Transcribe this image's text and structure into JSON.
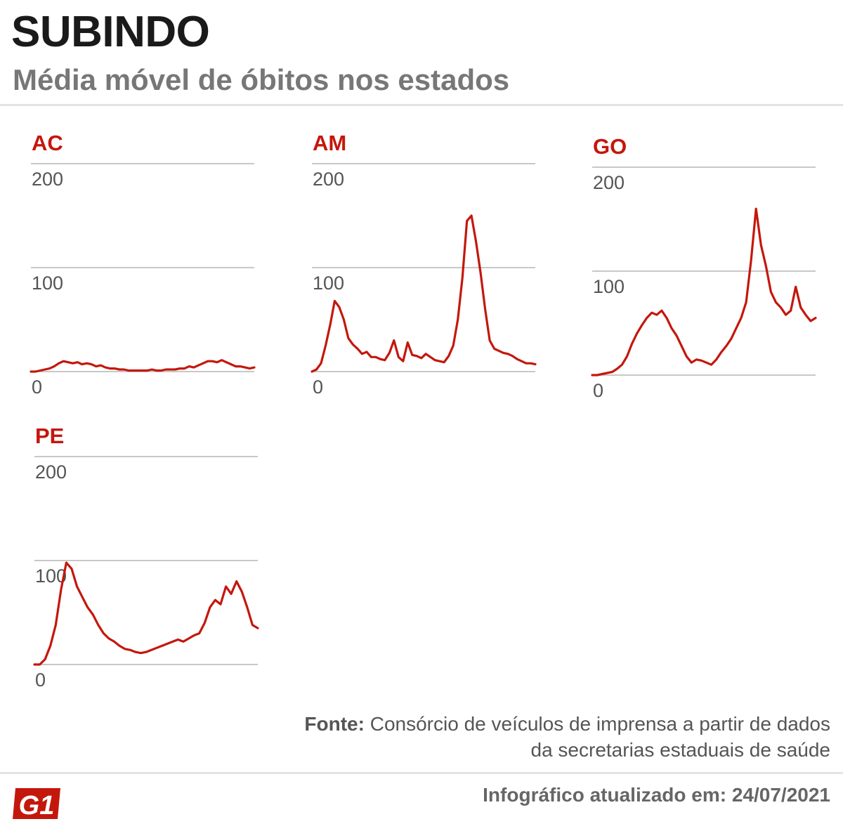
{
  "header": {
    "title": "SUBINDO",
    "subtitle": "Média móvel de óbitos nos estados"
  },
  "footer": {
    "source_label": "Fonte:",
    "source_text": "Consórcio de veículos de imprensa a partir de dados da secretarias estaduais de saúde",
    "updated": "Infográfico atualizado em: 24/07/2021",
    "logo_text": "G1"
  },
  "colors": {
    "series": "#c4170c",
    "label": "#c4170c",
    "grid": "#b5b5b5",
    "text": "#555555"
  },
  "chart_data": [
    {
      "type": "line",
      "title": "AC",
      "ylim": [
        0,
        200
      ],
      "yticks": [
        "200",
        "100",
        "0"
      ],
      "values": [
        0,
        0,
        1,
        2,
        3,
        5,
        8,
        10,
        9,
        8,
        9,
        7,
        8,
        7,
        5,
        6,
        4,
        3,
        3,
        2,
        2,
        1,
        1,
        1,
        1,
        1,
        2,
        1,
        1,
        2,
        2,
        2,
        3,
        3,
        5,
        4,
        6,
        8,
        10,
        10,
        9,
        11,
        9,
        7,
        5,
        5,
        4,
        3,
        4
      ]
    },
    {
      "type": "line",
      "title": "AM",
      "ylim": [
        0,
        200
      ],
      "yticks": [
        "200",
        "100",
        "0"
      ],
      "values": [
        0,
        2,
        8,
        25,
        45,
        68,
        62,
        50,
        32,
        26,
        22,
        17,
        19,
        14,
        14,
        12,
        11,
        18,
        30,
        14,
        10,
        28,
        16,
        15,
        13,
        17,
        14,
        11,
        10,
        9,
        15,
        25,
        50,
        90,
        145,
        150,
        125,
        95,
        60,
        30,
        22,
        20,
        18,
        17,
        15,
        12,
        10,
        8,
        8,
        7
      ]
    },
    {
      "type": "line",
      "title": "GO",
      "ylim": [
        0,
        200
      ],
      "yticks": [
        "200",
        "100",
        "0"
      ],
      "values": [
        0,
        0,
        1,
        2,
        3,
        6,
        10,
        18,
        30,
        40,
        48,
        55,
        60,
        58,
        62,
        55,
        45,
        38,
        28,
        18,
        12,
        15,
        14,
        12,
        10,
        15,
        22,
        28,
        35,
        45,
        55,
        70,
        110,
        160,
        125,
        105,
        80,
        70,
        65,
        58,
        62,
        85,
        65,
        58,
        52,
        55
      ]
    },
    {
      "type": "line",
      "title": "PE",
      "ylim": [
        0,
        200
      ],
      "yticks": [
        "200",
        "100",
        "0"
      ],
      "values": [
        0,
        0,
        5,
        18,
        38,
        72,
        98,
        92,
        75,
        65,
        55,
        48,
        38,
        30,
        25,
        22,
        18,
        15,
        14,
        12,
        11,
        12,
        14,
        16,
        18,
        20,
        22,
        24,
        22,
        25,
        28,
        30,
        40,
        55,
        62,
        58,
        75,
        68,
        80,
        70,
        55,
        38,
        35
      ]
    }
  ]
}
